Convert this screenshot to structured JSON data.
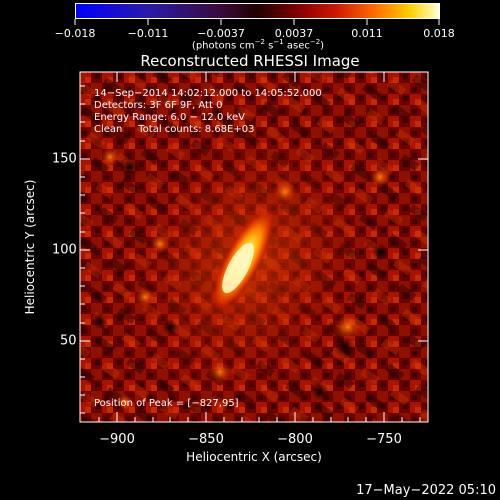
{
  "colorbar": {
    "tick_labels": [
      "−0.018",
      "−0.011",
      "−0.0037",
      "0.0037",
      "0.011",
      "0.018"
    ],
    "units_prefix": "(photons cm",
    "units_exp1": "−2",
    "units_mid1": " s",
    "units_exp2": "−1",
    "units_mid2": " asec",
    "units_exp3": "−2",
    "units_suffix": ")"
  },
  "title": "Reconstructed RHESSI Image",
  "annotations": {
    "time_range": "14−Sep−2014 14:02:12.000 to 14:05:52.000",
    "detectors": "Detectors: 3F 6F 9F, Att 0",
    "energy_range": "Energy Range: 6.0 − 12.0 keV",
    "clean_counts": "Clean     Total counts: 8.68E+03",
    "peak_position": "Position of Peak = [−827,95]"
  },
  "axes": {
    "x_label": "Heliocentric X (arcsec)",
    "y_label": "Heliocentric Y (arcsec)",
    "x_ticks": [
      "−900",
      "−850",
      "−800",
      "−750"
    ],
    "y_ticks": [
      "150",
      "100",
      "50"
    ]
  },
  "timestamp": "17−May−2022 05:10"
}
